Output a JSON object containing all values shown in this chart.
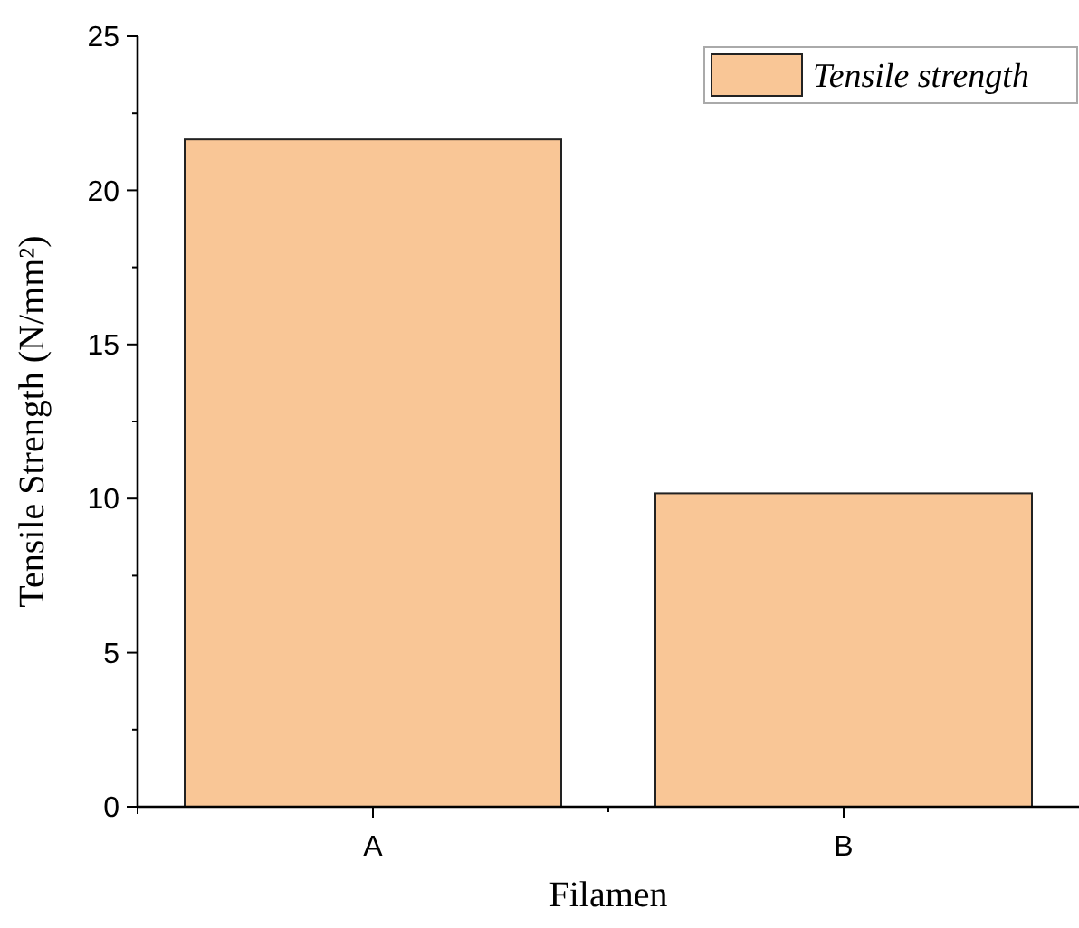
{
  "chart_data": {
    "type": "bar",
    "xlabel": "Filamen",
    "ylabel": "Tensile Strength (N/mm²)",
    "categories": [
      "A",
      "B"
    ],
    "series": [
      {
        "name": "Tensile strength",
        "color": "#f9c696",
        "values": [
          21.65,
          10.17
        ]
      }
    ],
    "ylim": [
      0,
      25
    ],
    "yticks": [
      0,
      {
        "value": 2.5,
        "label": null
      },
      5,
      {
        "value": 7.5,
        "label": null
      },
      10,
      {
        "value": 12.5,
        "label": null
      },
      15,
      {
        "value": 17.5,
        "label": null
      },
      20,
      {
        "value": 22.5,
        "label": null
      },
      25
    ],
    "grid": false,
    "legend": "top right"
  }
}
